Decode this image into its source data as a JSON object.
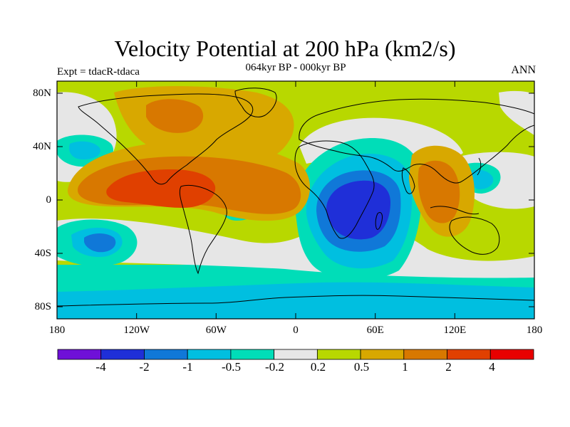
{
  "header": {
    "title": "Velocity Potential at 200 hPa (km2/s)",
    "subtitle": "064kyr BP - 000kyr BP",
    "experiment": "Expt = tdacR-tdaca",
    "season": "ANN"
  },
  "map": {
    "lat_labels": [
      "80N",
      "40N",
      "0",
      "40S",
      "80S"
    ],
    "lon_labels": [
      "180",
      "120W",
      "60W",
      "0",
      "60E",
      "120E",
      "180"
    ]
  },
  "colorbar": {
    "colors": [
      "#6f10d8",
      "#1f2fd8",
      "#1078d8",
      "#00bfe0",
      "#00ddb8",
      "#e6e6e6",
      "#b8d800",
      "#d8a800",
      "#d87800",
      "#e04000",
      "#e80000"
    ],
    "labels": [
      "-4",
      "-2",
      "-1",
      "-0.5",
      "-0.2",
      "0.2",
      "0.5",
      "1",
      "2",
      "4"
    ]
  }
}
